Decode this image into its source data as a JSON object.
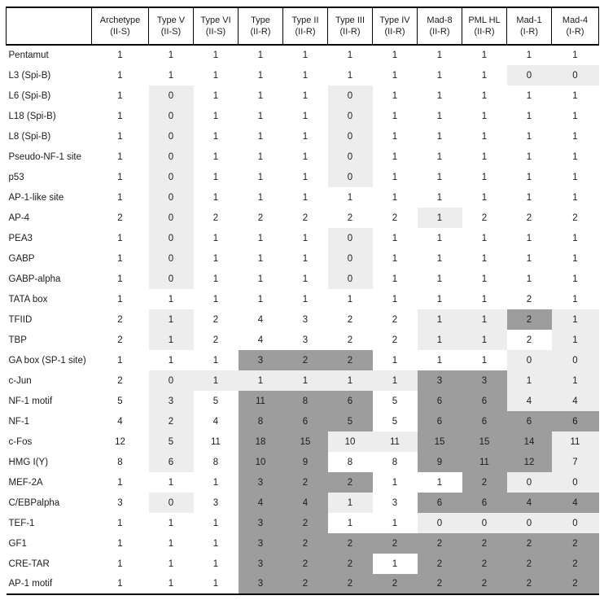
{
  "colors": {
    "highlight_light": "#ededed",
    "highlight_dark": "#9d9d9d",
    "text": "#1c1c1c",
    "rule": "#000000"
  },
  "table": {
    "row_label_header": "",
    "columns": [
      {
        "name": "Archetype",
        "sub": "(II-S)"
      },
      {
        "name": "Type V",
        "sub": "(II-S)"
      },
      {
        "name": "Type VI",
        "sub": "(II-S)"
      },
      {
        "name": "Type",
        "sub": "(II-R)"
      },
      {
        "name": "Type II",
        "sub": "(II-R)"
      },
      {
        "name": "Type III",
        "sub": "(II-R)"
      },
      {
        "name": "Type IV",
        "sub": "(II-R)"
      },
      {
        "name": "Mad-8",
        "sub": "(II-R)"
      },
      {
        "name": "PML HL",
        "sub": "(II-R)"
      },
      {
        "name": "Mad-1",
        "sub": "(I-R)"
      },
      {
        "name": "Mad-4",
        "sub": "(I-R)"
      }
    ],
    "highlight_legend": {
      "w": "white",
      "l": "light-gray",
      "d": "dark-gray"
    },
    "rows": [
      {
        "label": "Pentamut",
        "values": [
          1,
          1,
          1,
          1,
          1,
          1,
          1,
          1,
          1,
          1,
          1
        ],
        "hl": [
          "w",
          "w",
          "w",
          "w",
          "w",
          "w",
          "w",
          "w",
          "w",
          "w",
          "w"
        ]
      },
      {
        "label": "L3 (Spi-B)",
        "values": [
          1,
          1,
          1,
          1,
          1,
          1,
          1,
          1,
          1,
          0,
          0
        ],
        "hl": [
          "w",
          "w",
          "w",
          "w",
          "w",
          "w",
          "w",
          "w",
          "w",
          "l",
          "l"
        ]
      },
      {
        "label": "L6 (Spi-B)",
        "values": [
          1,
          0,
          1,
          1,
          1,
          0,
          1,
          1,
          1,
          1,
          1
        ],
        "hl": [
          "w",
          "l",
          "w",
          "w",
          "w",
          "l",
          "w",
          "w",
          "w",
          "w",
          "w"
        ]
      },
      {
        "label": "L18 (Spi-B)",
        "values": [
          1,
          0,
          1,
          1,
          1,
          0,
          1,
          1,
          1,
          1,
          1
        ],
        "hl": [
          "w",
          "l",
          "w",
          "w",
          "w",
          "l",
          "w",
          "w",
          "w",
          "w",
          "w"
        ]
      },
      {
        "label": "L8 (Spi-B)",
        "values": [
          1,
          0,
          1,
          1,
          1,
          0,
          1,
          1,
          1,
          1,
          1
        ],
        "hl": [
          "w",
          "l",
          "w",
          "w",
          "w",
          "l",
          "w",
          "w",
          "w",
          "w",
          "w"
        ]
      },
      {
        "label": "Pseudo-NF-1 site",
        "values": [
          1,
          0,
          1,
          1,
          1,
          0,
          1,
          1,
          1,
          1,
          1
        ],
        "hl": [
          "w",
          "l",
          "w",
          "w",
          "w",
          "l",
          "w",
          "w",
          "w",
          "w",
          "w"
        ]
      },
      {
        "label": "p53",
        "values": [
          1,
          0,
          1,
          1,
          1,
          0,
          1,
          1,
          1,
          1,
          1
        ],
        "hl": [
          "w",
          "l",
          "w",
          "w",
          "w",
          "l",
          "w",
          "w",
          "w",
          "w",
          "w"
        ]
      },
      {
        "label": "AP-1-like site",
        "values": [
          1,
          0,
          1,
          1,
          1,
          1,
          1,
          1,
          1,
          1,
          1
        ],
        "hl": [
          "w",
          "l",
          "w",
          "w",
          "w",
          "w",
          "w",
          "w",
          "w",
          "w",
          "w"
        ]
      },
      {
        "label": "AP-4",
        "values": [
          2,
          0,
          2,
          2,
          2,
          2,
          2,
          1,
          2,
          2,
          2
        ],
        "hl": [
          "w",
          "l",
          "w",
          "w",
          "w",
          "w",
          "w",
          "l",
          "w",
          "w",
          "w"
        ]
      },
      {
        "label": "PEA3",
        "values": [
          1,
          0,
          1,
          1,
          1,
          0,
          1,
          1,
          1,
          1,
          1
        ],
        "hl": [
          "w",
          "l",
          "w",
          "w",
          "w",
          "l",
          "w",
          "w",
          "w",
          "w",
          "w"
        ]
      },
      {
        "label": "GABP",
        "values": [
          1,
          0,
          1,
          1,
          1,
          0,
          1,
          1,
          1,
          1,
          1
        ],
        "hl": [
          "w",
          "l",
          "w",
          "w",
          "w",
          "l",
          "w",
          "w",
          "w",
          "w",
          "w"
        ]
      },
      {
        "label": "GABP-alpha",
        "values": [
          1,
          0,
          1,
          1,
          1,
          0,
          1,
          1,
          1,
          1,
          1
        ],
        "hl": [
          "w",
          "l",
          "w",
          "w",
          "w",
          "l",
          "w",
          "w",
          "w",
          "w",
          "w"
        ]
      },
      {
        "label": "TATA box",
        "values": [
          1,
          1,
          1,
          1,
          1,
          1,
          1,
          1,
          1,
          2,
          1
        ],
        "hl": [
          "w",
          "w",
          "w",
          "w",
          "w",
          "w",
          "w",
          "w",
          "w",
          "w",
          "w"
        ]
      },
      {
        "label": "TFIID",
        "values": [
          2,
          1,
          2,
          4,
          3,
          2,
          2,
          1,
          1,
          2,
          1
        ],
        "hl": [
          "w",
          "l",
          "w",
          "w",
          "w",
          "w",
          "w",
          "l",
          "l",
          "d",
          "l"
        ]
      },
      {
        "label": "TBP",
        "values": [
          2,
          1,
          2,
          4,
          3,
          2,
          2,
          1,
          1,
          2,
          1
        ],
        "hl": [
          "w",
          "l",
          "w",
          "w",
          "w",
          "w",
          "w",
          "l",
          "l",
          "w",
          "l"
        ]
      },
      {
        "label": "GA box (SP-1 site)",
        "values": [
          1,
          1,
          1,
          3,
          2,
          2,
          1,
          1,
          1,
          0,
          0
        ],
        "hl": [
          "w",
          "w",
          "w",
          "d",
          "d",
          "d",
          "w",
          "w",
          "w",
          "l",
          "l"
        ]
      },
      {
        "label": "c-Jun",
        "values": [
          2,
          0,
          1,
          1,
          1,
          1,
          1,
          3,
          3,
          1,
          1
        ],
        "hl": [
          "w",
          "l",
          "l",
          "l",
          "l",
          "l",
          "l",
          "d",
          "d",
          "l",
          "l"
        ]
      },
      {
        "label": "NF-1 motif",
        "values": [
          5,
          3,
          5,
          11,
          8,
          6,
          5,
          6,
          6,
          4,
          4
        ],
        "hl": [
          "w",
          "l",
          "w",
          "d",
          "d",
          "d",
          "w",
          "d",
          "d",
          "l",
          "l"
        ]
      },
      {
        "label": "NF-1",
        "values": [
          4,
          2,
          4,
          8,
          6,
          5,
          5,
          6,
          6,
          6,
          6
        ],
        "hl": [
          "w",
          "l",
          "w",
          "d",
          "d",
          "d",
          "w",
          "d",
          "d",
          "d",
          "d"
        ]
      },
      {
        "label": "c-Fos",
        "values": [
          12,
          5,
          11,
          18,
          15,
          10,
          11,
          15,
          15,
          14,
          11
        ],
        "hl": [
          "w",
          "l",
          "w",
          "d",
          "d",
          "l",
          "l",
          "d",
          "d",
          "d",
          "l"
        ]
      },
      {
        "label": "HMG I(Y)",
        "values": [
          8,
          6,
          8,
          10,
          9,
          8,
          8,
          9,
          11,
          12,
          7
        ],
        "hl": [
          "w",
          "l",
          "w",
          "d",
          "d",
          "w",
          "w",
          "d",
          "d",
          "d",
          "l"
        ]
      },
      {
        "label": "MEF-2A",
        "values": [
          1,
          1,
          1,
          3,
          2,
          2,
          1,
          1,
          2,
          0,
          0
        ],
        "hl": [
          "w",
          "w",
          "w",
          "d",
          "d",
          "d",
          "w",
          "w",
          "d",
          "l",
          "l"
        ]
      },
      {
        "label": "C/EBPalpha",
        "values": [
          3,
          0,
          3,
          4,
          4,
          1,
          3,
          6,
          6,
          4,
          4
        ],
        "hl": [
          "w",
          "l",
          "w",
          "d",
          "d",
          "l",
          "w",
          "d",
          "d",
          "d",
          "d"
        ]
      },
      {
        "label": "TEF-1",
        "values": [
          1,
          1,
          1,
          3,
          2,
          1,
          1,
          0,
          0,
          0,
          0
        ],
        "hl": [
          "w",
          "w",
          "w",
          "d",
          "d",
          "w",
          "w",
          "l",
          "l",
          "l",
          "l"
        ]
      },
      {
        "label": "GF1",
        "values": [
          1,
          1,
          1,
          3,
          2,
          2,
          2,
          2,
          2,
          2,
          2
        ],
        "hl": [
          "w",
          "w",
          "w",
          "d",
          "d",
          "d",
          "d",
          "d",
          "d",
          "d",
          "d"
        ]
      },
      {
        "label": "CRE-TAR",
        "values": [
          1,
          1,
          1,
          3,
          2,
          2,
          1,
          2,
          2,
          2,
          2
        ],
        "hl": [
          "w",
          "w",
          "w",
          "d",
          "d",
          "d",
          "w",
          "d",
          "d",
          "d",
          "d"
        ]
      },
      {
        "label": "AP-1 motif",
        "values": [
          1,
          1,
          1,
          3,
          2,
          2,
          2,
          2,
          2,
          2,
          2
        ],
        "hl": [
          "w",
          "w",
          "w",
          "d",
          "d",
          "d",
          "d",
          "d",
          "d",
          "d",
          "d"
        ]
      }
    ]
  }
}
